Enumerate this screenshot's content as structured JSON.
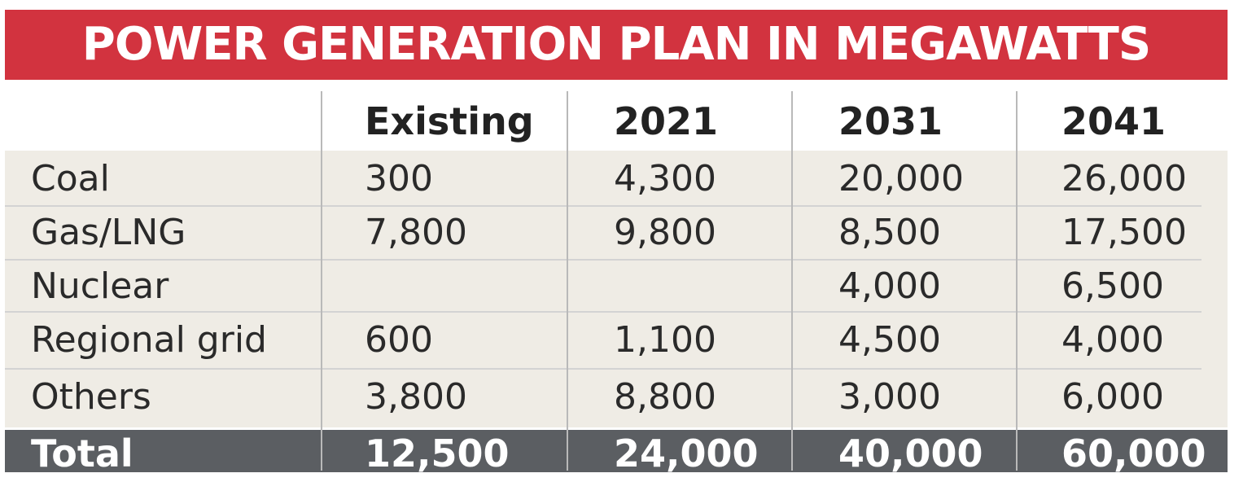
{
  "chart_data": {
    "type": "table",
    "title": "POWER GENERATION PLAN IN MEGAWATTS",
    "columns": [
      "",
      "Existing",
      "2021",
      "2031",
      "2041"
    ],
    "rows": [
      {
        "label": "Coal",
        "values": [
          "300",
          "4,300",
          "20,000",
          "26,000"
        ]
      },
      {
        "label": "Gas/LNG",
        "values": [
          "7,800",
          "9,800",
          "8,500",
          "17,500"
        ]
      },
      {
        "label": "Nuclear",
        "values": [
          "",
          "",
          "4,000",
          "6,500"
        ]
      },
      {
        "label": "Regional grid",
        "values": [
          "600",
          "1,100",
          "4,500",
          "4,000"
        ]
      },
      {
        "label": "Others",
        "values": [
          "3,800",
          "8,800",
          "3,000",
          "6,000"
        ]
      }
    ],
    "total": {
      "label": "Total",
      "values": [
        "12,500",
        "24,000",
        "40,000",
        "60,000"
      ]
    },
    "colors": {
      "title_bg": "#d2333f",
      "title_text": "#ffffff",
      "body_bg": "#efece5",
      "total_bg": "#5b5e62",
      "total_text": "#ffffff",
      "grid": "#b9b9b9"
    }
  }
}
